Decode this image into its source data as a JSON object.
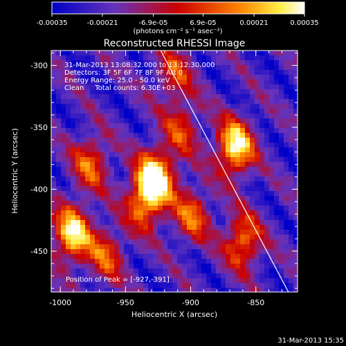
{
  "colorbar": {
    "ticks": [
      "-0.00035",
      "-0.00021",
      "-6.9e-05",
      "6.9e-05",
      "0.00021",
      "0.00035"
    ],
    "units": "(photons cm⁻² s⁻¹ asec⁻²)",
    "range": [
      -0.00035,
      0.00035
    ]
  },
  "annotations": {
    "time_range": "31-Mar-2013 13:08:32.000 to 13:12:30.000",
    "detectors": "Detectors: 3F 5F 6F 7F 8F 9F Att 0",
    "energy": "Energy Range: 25.0 - 50.0 keV",
    "clean": "Clean     Total counts: 6.30E+03",
    "peak": "Position of Peak = [-927,-391]"
  },
  "timestamp": "31-Mar-2013 15:35",
  "colors": {
    "background": "#000000",
    "text": "#ffffff",
    "limb_line": "#ffffff",
    "colormap": [
      "#0000c8",
      "#6633bb",
      "#cc0000",
      "#ff8800",
      "#ffee44",
      "#ffffff"
    ]
  },
  "chart_data": {
    "type": "heatmap",
    "title": "Reconstructed RHESSI Image",
    "xlabel": "Heliocentric X (arcsec)",
    "ylabel": "Heliocentric Y (arcsec)",
    "xlim": [
      -1007,
      -818
    ],
    "ylim": [
      -483,
      -288
    ],
    "xticks": [
      -1000,
      -950,
      -900,
      -850
    ],
    "yticks": [
      -300,
      -350,
      -400,
      -450
    ],
    "xtick_labels": [
      "-1000",
      "-950",
      "-900",
      "-850"
    ],
    "ytick_labels": [
      "-300",
      "-350",
      "-400",
      "-450"
    ],
    "peak": [
      -927,
      -391
    ],
    "limb_line": [
      [
        -923,
        -288
      ],
      [
        -825,
        -483
      ]
    ],
    "sources": [
      {
        "x": -927,
        "y": -391,
        "strength": 1.0
      },
      {
        "x": -866,
        "y": -366,
        "strength": 0.95
      },
      {
        "x": -991,
        "y": -436,
        "strength": 0.9
      },
      {
        "x": -936,
        "y": -411,
        "strength": 0.6
      },
      {
        "x": -899,
        "y": -421,
        "strength": 0.55
      },
      {
        "x": -977,
        "y": -379,
        "strength": 0.55
      },
      {
        "x": -860,
        "y": -442,
        "strength": 0.65
      },
      {
        "x": -913,
        "y": -307,
        "strength": 0.45
      },
      {
        "x": -907,
        "y": -351,
        "strength": 0.45
      },
      {
        "x": -965,
        "y": -453,
        "strength": 0.5
      }
    ]
  }
}
